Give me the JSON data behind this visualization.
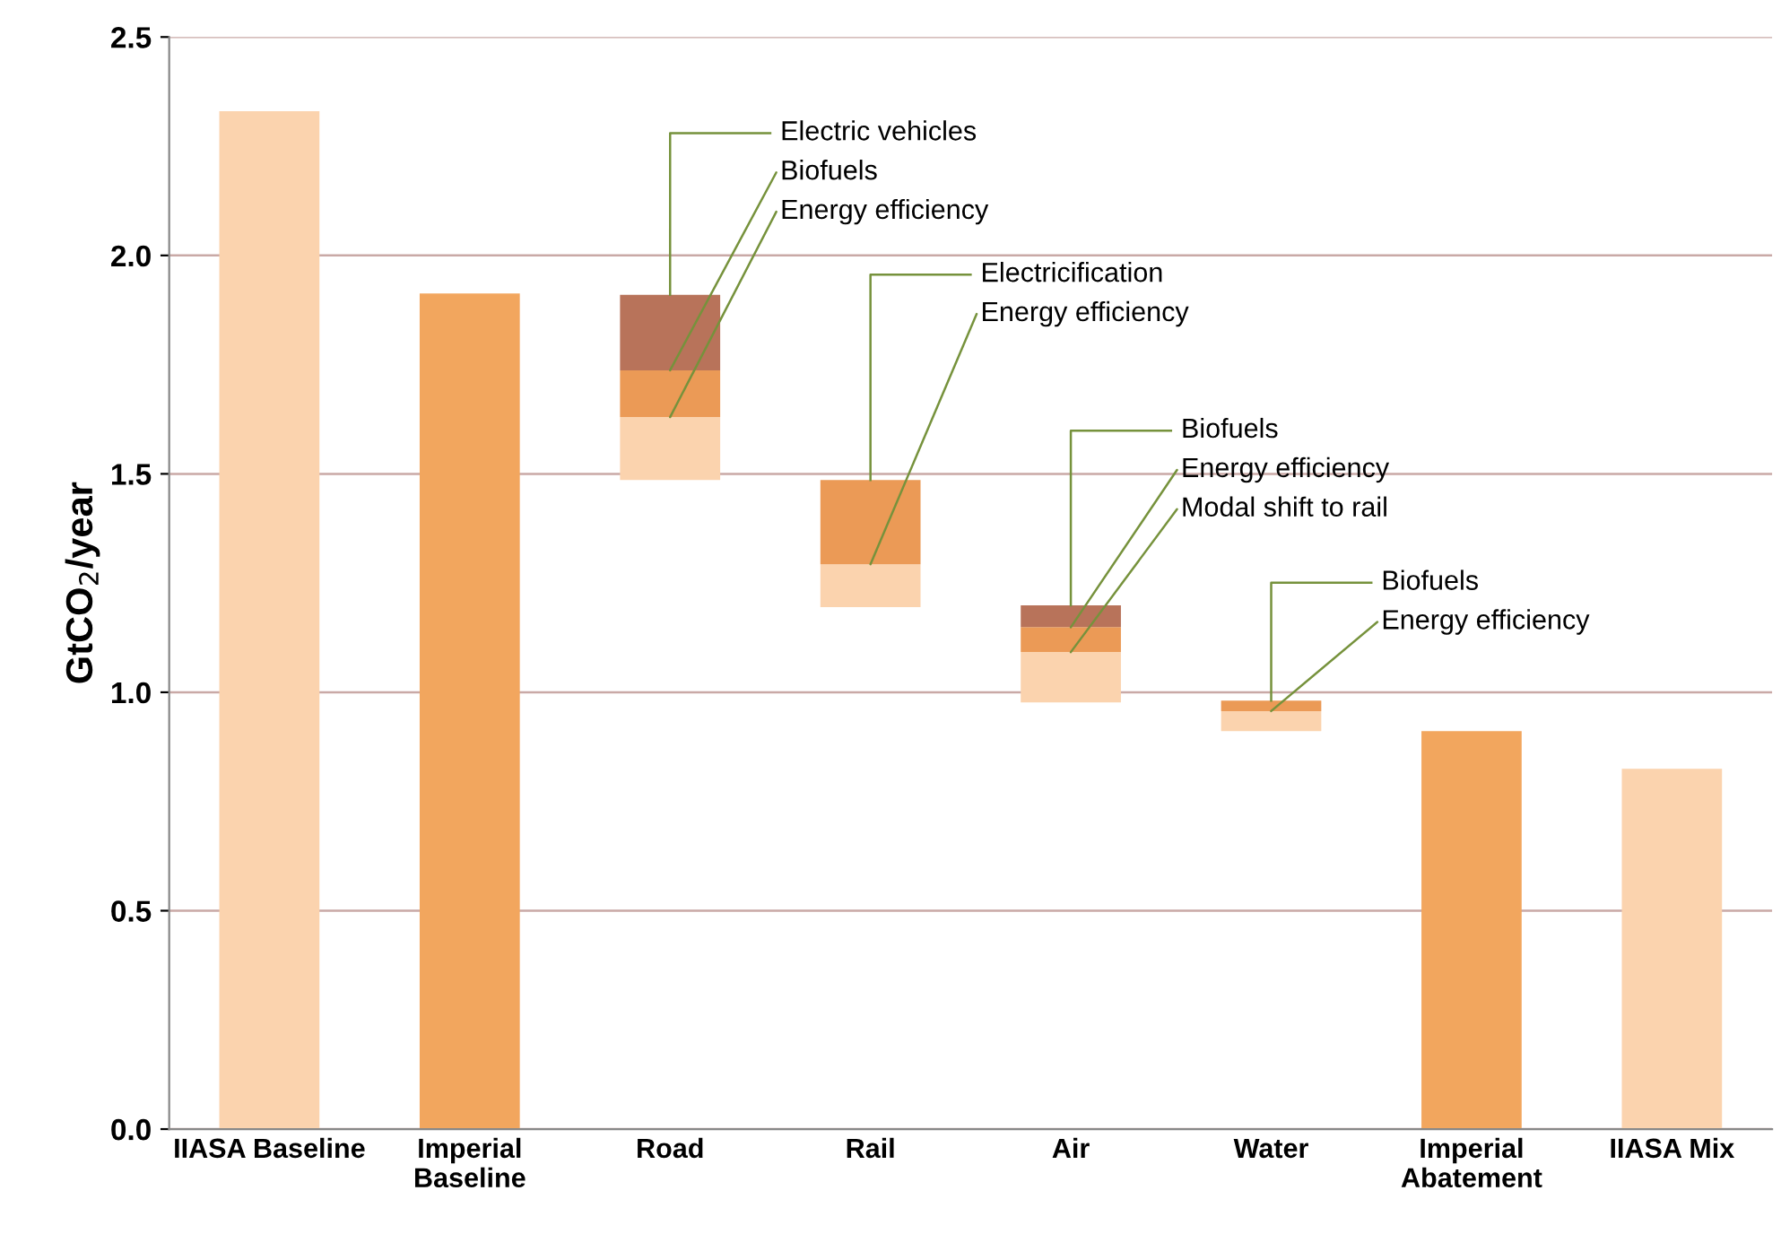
{
  "chart_data": {
    "type": "bar",
    "ylabel": "GtCO$_{2}$/year",
    "categories": [
      "IIASA Baseline",
      "Imperial\nBaseline",
      "Road",
      "Rail",
      "Air",
      "Water",
      "Imperial\nAbatement",
      "IIASA Mix"
    ],
    "series": [
      {
        "color": "#fbd3ae",
        "values": [
          2.33,
          null,
          0.144,
          0.098,
          0.115,
          0.046,
          null,
          0.825
        ],
        "base": [
          0,
          null,
          1.486,
          1.195,
          0.977,
          0.911,
          null,
          0
        ]
      },
      {
        "color": "#f2a65e",
        "values": [
          null,
          1.913,
          null,
          null,
          null,
          null,
          0.911,
          null
        ],
        "base": [
          null,
          0,
          null,
          null,
          null,
          null,
          0,
          null
        ]
      },
      {
        "color": "#eb9a56",
        "values": [
          null,
          null,
          0.107,
          0.193,
          0.057,
          0.024,
          null,
          null
        ],
        "base": [
          null,
          null,
          1.63,
          1.293,
          1.092,
          0.957,
          null,
          null
        ]
      },
      {
        "color": "#b8735a",
        "values": [
          null,
          null,
          0.173,
          null,
          0.05,
          null,
          null,
          null
        ],
        "base": [
          null,
          null,
          1.737,
          null,
          1.149,
          null,
          null,
          null
        ]
      }
    ],
    "annotations": [
      {
        "text": "Electric vehicles",
        "x": "Road",
        "y": 1.91
      },
      {
        "text": "Biofuels",
        "x": "Road",
        "y": 1.737
      },
      {
        "text": "Energy efficiency",
        "x": "Road",
        "y": 1.63
      },
      {
        "text": "Electricification",
        "x": "Rail",
        "y": 1.486
      },
      {
        "text": "Energy efficiency",
        "x": "Rail",
        "y": 1.293
      },
      {
        "text": "Biofuels",
        "x": "Air",
        "y": 1.199
      },
      {
        "text": "Energy efficiency",
        "x": "Air",
        "y": 1.149
      },
      {
        "text": "Modal shift to rail",
        "x": "Air",
        "y": 1.092
      },
      {
        "text": "Biofuels",
        "x": "Water",
        "y": 0.981
      },
      {
        "text": "Energy efficiency",
        "x": "Water",
        "y": 0.957
      }
    ],
    "ylim": [
      0,
      2.5
    ],
    "yticks": [
      {
        "value": 0,
        "label": "0.0"
      },
      0.5,
      {
        "value": 1,
        "label": "1.0"
      },
      1.5,
      {
        "value": 2,
        "label": "2.0"
      },
      2.5
    ],
    "grid": "y",
    "legend": false
  }
}
